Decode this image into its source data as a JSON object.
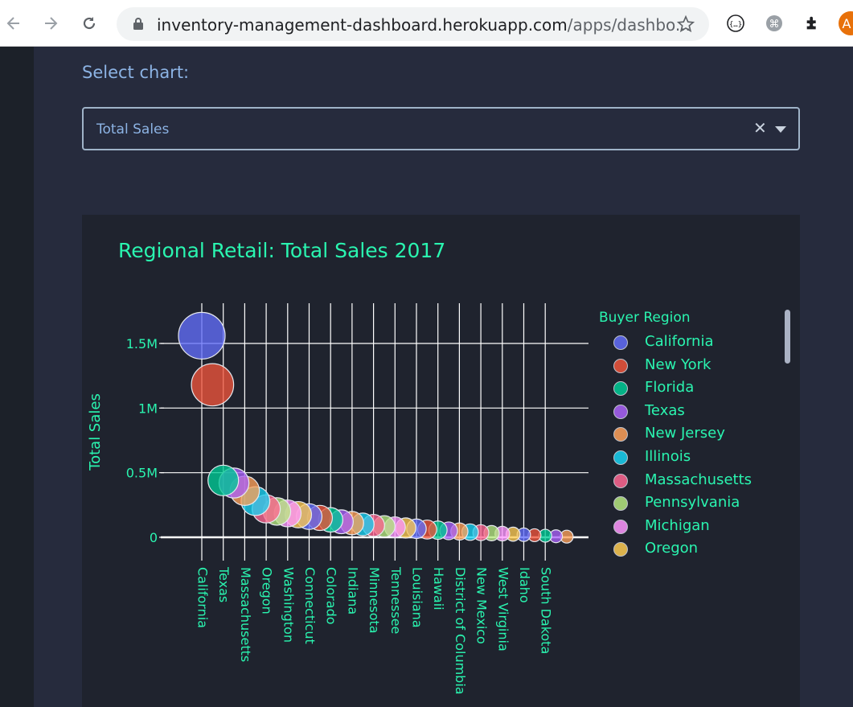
{
  "browser": {
    "url_main": "inventory-management-dashboard.herokuapp.com",
    "url_rest": "/apps/dashbo...",
    "profile_initial": "A"
  },
  "page": {
    "select_label": "Select chart:",
    "selected_chart": "Total Sales",
    "clear_glyph": "✕"
  },
  "chart": {
    "title": "Regional Retail: Total Sales 2017",
    "ylabel": "Total Sales",
    "legend_title": "Buyer Region",
    "legend_items": [
      {
        "label": "California",
        "color": "#636efa"
      },
      {
        "label": "New York",
        "color": "#ef553b"
      },
      {
        "label": "Florida",
        "color": "#00cc96"
      },
      {
        "label": "Texas",
        "color": "#ab63fa"
      },
      {
        "label": "New Jersey",
        "color": "#ffa15a"
      },
      {
        "label": "Illinois",
        "color": "#19d3f3"
      },
      {
        "label": "Massachusetts",
        "color": "#ff6692"
      },
      {
        "label": "Pennsylvania",
        "color": "#b6e880"
      },
      {
        "label": "Michigan",
        "color": "#ff97ff"
      },
      {
        "label": "Oregon",
        "color": "#fecb52"
      }
    ]
  },
  "chart_data": {
    "type": "scatter",
    "title": "Regional Retail: Total Sales 2017",
    "xlabel": "",
    "ylabel": "Total Sales",
    "ylim": [
      -50000,
      1700000
    ],
    "yticks": [
      {
        "value": 0,
        "label": "0"
      },
      {
        "value": 500000,
        "label": "0.5M"
      },
      {
        "value": 1000000,
        "label": "1M"
      },
      {
        "value": 1500000,
        "label": "1.5M"
      }
    ],
    "x_tick_labels": [
      "California",
      "Texas",
      "Massachusetts",
      "Oregon",
      "Washington",
      "Connecticut",
      "Colorado",
      "Indiana",
      "Minnesota",
      "Tennessee",
      "Louisiana",
      "Hawaii",
      "District of Columbia",
      "New Mexico",
      "West Virginia",
      "Idaho",
      "South Dakota"
    ],
    "x_tick_indices": [
      0,
      2,
      4,
      6,
      8,
      10,
      12,
      14,
      16,
      18,
      20,
      22,
      24,
      26,
      28,
      30,
      32
    ],
    "point_count": 35,
    "values": [
      1560000,
      1180000,
      440000,
      420000,
      360000,
      280000,
      220000,
      200000,
      185000,
      175000,
      160000,
      150000,
      135000,
      120000,
      110000,
      100000,
      92000,
      85000,
      78000,
      72000,
      66000,
      60000,
      55000,
      50000,
      45000,
      40000,
      36000,
      32000,
      28000,
      24000,
      20000,
      16000,
      12000,
      8000,
      5000
    ],
    "series": [
      {
        "name": "California",
        "color": "#636efa"
      },
      {
        "name": "New York",
        "color": "#ef553b"
      },
      {
        "name": "Florida",
        "color": "#00cc96"
      },
      {
        "name": "Texas",
        "color": "#ab63fa"
      },
      {
        "name": "New Jersey",
        "color": "#ffa15a"
      },
      {
        "name": "Illinois",
        "color": "#19d3f3"
      },
      {
        "name": "Massachusetts",
        "color": "#ff6692"
      },
      {
        "name": "Pennsylvania",
        "color": "#b6e880"
      },
      {
        "name": "Michigan",
        "color": "#ff97ff"
      },
      {
        "name": "Oregon",
        "color": "#fecb52"
      }
    ],
    "grid": true,
    "legend_position": "right"
  }
}
